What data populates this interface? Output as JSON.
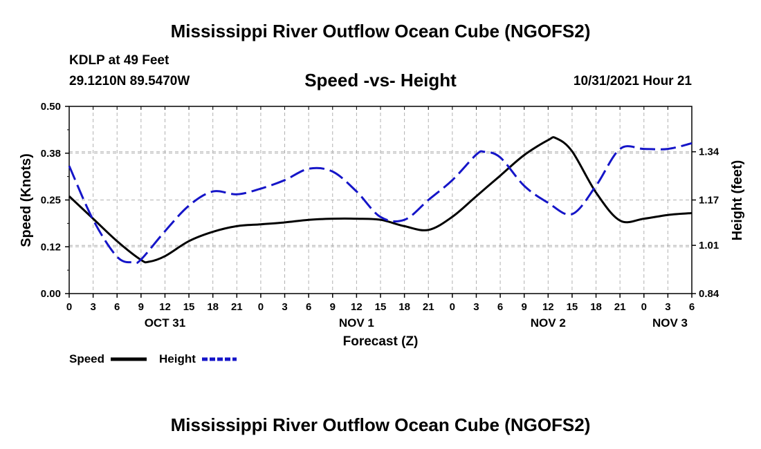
{
  "header": {
    "title": "Mississippi River Outflow Ocean Cube (NGOFS2)",
    "station": "KDLP at 49 Feet",
    "coords": "29.1210N  89.5470W",
    "subtitle": "Speed -vs- Height",
    "datetime": "10/31/2021 Hour 21"
  },
  "footer": {
    "title": "Mississippi River Outflow Ocean Cube (NGOFS2)"
  },
  "colors": {
    "speed": "#000000",
    "height": "#1515c8",
    "grid": "#b0b0b0"
  },
  "chart_data": {
    "type": "line",
    "title": "Speed -vs- Height",
    "xlabel": "Forecast (Z)",
    "ylabel": "Speed (Knots)",
    "y2label": "Height (feet)",
    "x_hours_range": [
      0,
      78
    ],
    "ylim": [
      0,
      0.5
    ],
    "y2lim": [
      0.84,
      1.5
    ],
    "x_ticks": [
      {
        "h": 0,
        "label": "0"
      },
      {
        "h": 3,
        "label": "3"
      },
      {
        "h": 6,
        "label": "6"
      },
      {
        "h": 9,
        "label": "9"
      },
      {
        "h": 12,
        "label": "12"
      },
      {
        "h": 15,
        "label": "15"
      },
      {
        "h": 18,
        "label": "18"
      },
      {
        "h": 21,
        "label": "21"
      },
      {
        "h": 24,
        "label": "0"
      },
      {
        "h": 27,
        "label": "3"
      },
      {
        "h": 30,
        "label": "6"
      },
      {
        "h": 33,
        "label": "9"
      },
      {
        "h": 36,
        "label": "12"
      },
      {
        "h": 39,
        "label": "15"
      },
      {
        "h": 42,
        "label": "18"
      },
      {
        "h": 45,
        "label": "21"
      },
      {
        "h": 48,
        "label": "0"
      },
      {
        "h": 51,
        "label": "3"
      },
      {
        "h": 54,
        "label": "6"
      },
      {
        "h": 57,
        "label": "9"
      },
      {
        "h": 60,
        "label": "12"
      },
      {
        "h": 63,
        "label": "15"
      },
      {
        "h": 66,
        "label": "18"
      },
      {
        "h": 69,
        "label": "21"
      },
      {
        "h": 72,
        "label": "0"
      },
      {
        "h": 75,
        "label": "3"
      },
      {
        "h": 78,
        "label": "6"
      }
    ],
    "day_labels": [
      {
        "h": 12,
        "label": "OCT 31"
      },
      {
        "h": 36,
        "label": "NOV 1"
      },
      {
        "h": 60,
        "label": "NOV 2"
      },
      {
        "h": 78,
        "label": "NOV 3"
      }
    ],
    "y_ticks": [
      {
        "v": 0.0,
        "label": "0.00"
      },
      {
        "v": 0.125,
        "label": "0.12"
      },
      {
        "v": 0.25,
        "label": "0.25"
      },
      {
        "v": 0.375,
        "label": "0.38"
      },
      {
        "v": 0.5,
        "label": "0.50"
      }
    ],
    "y2_ticks": [
      {
        "v": 0.84,
        "label": "0.84"
      },
      {
        "v": 1.01,
        "label": "1.01"
      },
      {
        "v": 1.17,
        "label": "1.17"
      },
      {
        "v": 1.34,
        "label": "1.34"
      }
    ],
    "legend": [
      {
        "name": "Speed",
        "style": "solid"
      },
      {
        "name": "Height",
        "style": "dashed"
      }
    ],
    "series": [
      {
        "name": "Speed",
        "axis": "left",
        "unit": "knots",
        "x": [
          0,
          3,
          6,
          9,
          10,
          12,
          15,
          18,
          21,
          24,
          27,
          30,
          33,
          36,
          39,
          42,
          45,
          48,
          51,
          54,
          57,
          60,
          61,
          63,
          66,
          69,
          72,
          75,
          78
        ],
        "y": [
          0.26,
          0.2,
          0.14,
          0.09,
          0.085,
          0.1,
          0.14,
          0.165,
          0.18,
          0.185,
          0.19,
          0.197,
          0.2,
          0.2,
          0.197,
          0.18,
          0.17,
          0.205,
          0.26,
          0.315,
          0.37,
          0.41,
          0.415,
          0.38,
          0.27,
          0.195,
          0.2,
          0.21,
          0.215
        ]
      },
      {
        "name": "Height",
        "axis": "right",
        "unit": "feet",
        "x": [
          0,
          3,
          6,
          8,
          9,
          12,
          15,
          18,
          21,
          24,
          27,
          30,
          33,
          36,
          39,
          42,
          45,
          48,
          51,
          52,
          54,
          57,
          60,
          63,
          66,
          69,
          72,
          75,
          78
        ],
        "y": [
          1.29,
          1.1,
          0.97,
          0.95,
          0.96,
          1.06,
          1.15,
          1.2,
          1.19,
          1.21,
          1.24,
          1.28,
          1.27,
          1.2,
          1.11,
          1.1,
          1.17,
          1.24,
          1.33,
          1.34,
          1.32,
          1.22,
          1.16,
          1.12,
          1.22,
          1.35,
          1.35,
          1.35,
          1.37
        ]
      }
    ]
  }
}
